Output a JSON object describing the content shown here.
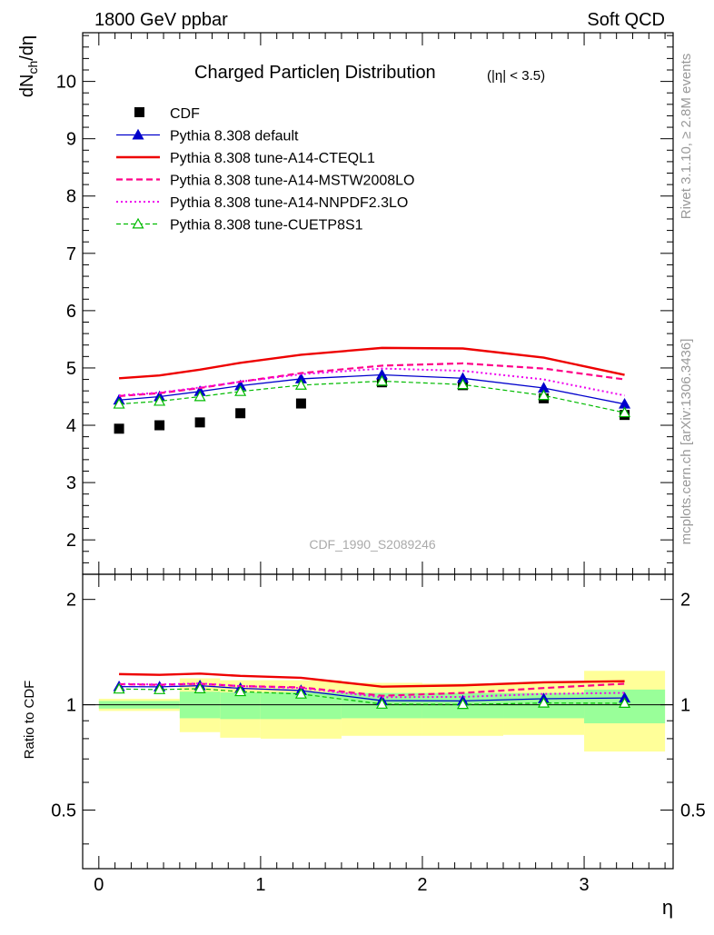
{
  "header": {
    "beam": "1800 GeV ppbar",
    "process": "Soft QCD"
  },
  "side": {
    "rivet": "Rivet 3.1.10, ≥ 2.8M events",
    "mcplots": "mcplots.cern.ch [arXiv:1306.3436]"
  },
  "chart_data": {
    "type": "line",
    "title": "Charged Particleη Distribution",
    "title_cut": "(|η| < 3.5)",
    "analysis_label": "CDF_1990_S2089246",
    "ylabel_main": "dN_ch/dη",
    "ylabel_main_parts": {
      "base": "dN",
      "sub": "ch",
      "tail": "/dη"
    },
    "ylabel_ratio": "Ratio to CDF",
    "xlabel": "η",
    "xlim": [
      -0.1,
      3.55
    ],
    "ylim_main": [
      1.4,
      10.85
    ],
    "ylim_ratio": [
      0.34,
      2.36
    ],
    "x_ticks": [
      0,
      1,
      2,
      3
    ],
    "x_tick_labels": [
      "0",
      "1",
      "2",
      "3"
    ],
    "y_ticks_main": [
      2,
      3,
      4,
      5,
      6,
      7,
      8,
      9,
      10
    ],
    "y_tick_labels_main": [
      "2",
      "3",
      "4",
      "5",
      "6",
      "7",
      "8",
      "9",
      "10"
    ],
    "y_ticks_ratio": [
      0.5,
      1,
      2
    ],
    "y_tick_labels_ratio": [
      "0.5",
      "1",
      "2"
    ],
    "x": [
      0.125,
      0.375,
      0.625,
      0.875,
      1.25,
      1.75,
      2.25,
      2.75,
      3.25
    ],
    "data": {
      "name": "CDF",
      "values": [
        3.94,
        4.0,
        4.05,
        4.21,
        4.38,
        4.75,
        4.7,
        4.47,
        4.18
      ]
    },
    "series": [
      {
        "name": "Pythia 8.308 default",
        "color": "#0000cc",
        "style": "solid",
        "marker": "triangle-filled",
        "values": [
          4.44,
          4.5,
          4.59,
          4.69,
          4.81,
          4.88,
          4.82,
          4.65,
          4.37
        ]
      },
      {
        "name": "Pythia 8.308 tune-A14-CTEQL1",
        "color": "#ee0000",
        "style": "solid-thick",
        "marker": "none",
        "values": [
          4.82,
          4.87,
          4.97,
          5.09,
          5.23,
          5.35,
          5.34,
          5.18,
          4.88
        ]
      },
      {
        "name": "Pythia 8.308 tune-A14-MSTW2008LO",
        "color": "#ff0088",
        "style": "dashed",
        "marker": "none",
        "values": [
          4.51,
          4.56,
          4.65,
          4.76,
          4.91,
          5.04,
          5.08,
          4.99,
          4.8
        ]
      },
      {
        "name": "Pythia 8.308 tune-A14-NNPDF2.3LO",
        "color": "#ee00ee",
        "style": "dotted",
        "marker": "none",
        "values": [
          4.52,
          4.57,
          4.66,
          4.76,
          4.89,
          4.99,
          4.95,
          4.8,
          4.52
        ]
      },
      {
        "name": "Pythia 8.308 tune-CUETP8S1",
        "color": "#00bb00",
        "style": "dashed-thin",
        "marker": "triangle-open",
        "values": [
          4.37,
          4.42,
          4.5,
          4.59,
          4.7,
          4.77,
          4.71,
          4.52,
          4.22
        ]
      }
    ],
    "uncertainty_bands": {
      "edges": [
        0,
        0.5,
        0.75,
        1.0,
        1.5,
        2.0,
        2.5,
        3.0,
        3.5
      ],
      "yellow_lo": [
        0.96,
        0.835,
        0.805,
        0.8,
        0.815,
        0.815,
        0.82,
        0.735
      ],
      "yellow_hi": [
        1.04,
        1.19,
        1.175,
        1.175,
        1.155,
        1.15,
        1.155,
        1.25
      ],
      "green_lo": [
        0.975,
        0.915,
        0.91,
        0.91,
        0.915,
        0.915,
        0.915,
        0.885
      ],
      "green_hi": [
        1.025,
        1.09,
        1.085,
        1.085,
        1.08,
        1.08,
        1.08,
        1.105
      ]
    },
    "legend_position": "top-left"
  }
}
